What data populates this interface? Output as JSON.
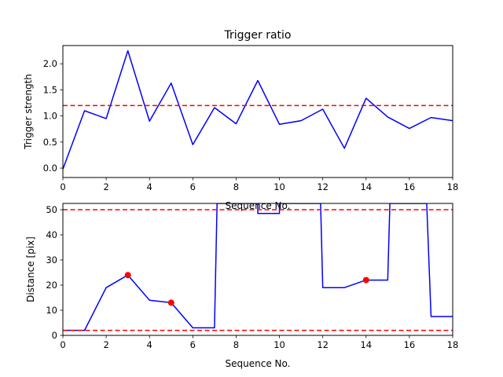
{
  "chart_data": [
    {
      "type": "line",
      "title": "Trigger ratio",
      "xlabel": "Sequence No.",
      "ylabel": "Trigger strength",
      "xlim": [
        0,
        18
      ],
      "ylim": [
        -0.18,
        2.35
      ],
      "xticks": [
        0,
        2,
        4,
        6,
        8,
        10,
        12,
        14,
        16,
        18
      ],
      "yticks": [
        0.0,
        0.5,
        1.0,
        1.5,
        2.0
      ],
      "ytick_labels": [
        "0.0",
        "0.5",
        "1.0",
        "1.5",
        "2.0"
      ],
      "grid": false,
      "series": [
        {
          "color": "#0000ff",
          "x": [
            0,
            1,
            2,
            3,
            4,
            5,
            6,
            7,
            8,
            9,
            10,
            11,
            12,
            13,
            14,
            15,
            16,
            17,
            18
          ],
          "values": [
            -0.02,
            1.1,
            0.95,
            2.25,
            0.9,
            1.63,
            0.45,
            1.16,
            0.85,
            1.68,
            0.84,
            0.91,
            1.13,
            0.38,
            1.34,
            0.98,
            0.76,
            0.97,
            0.91
          ]
        }
      ],
      "hlines": [
        {
          "y": 1.2,
          "color": "#ff0000",
          "style": "dashed"
        }
      ],
      "markers": []
    },
    {
      "type": "line",
      "title": "",
      "xlabel": "Sequence No.",
      "ylabel": "Distance [pix]",
      "xlim": [
        0,
        18
      ],
      "ylim": [
        0,
        52.5
      ],
      "xticks": [
        0,
        2,
        4,
        6,
        8,
        10,
        12,
        14,
        16,
        18
      ],
      "yticks": [
        0,
        10,
        20,
        30,
        40,
        50
      ],
      "ytick_labels": [
        "0",
        "10",
        "20",
        "30",
        "40",
        "50"
      ],
      "grid": false,
      "series": [
        {
          "color": "#0000ff",
          "x": [
            0,
            1,
            2,
            3,
            4,
            5,
            6,
            7,
            7.12,
            7.2,
            9,
            9,
            10,
            10,
            11.88,
            11.9,
            12,
            13,
            14,
            15,
            15.1,
            16.7,
            16.8,
            17,
            18
          ],
          "values": [
            2,
            2,
            19,
            24,
            14,
            13,
            3,
            3,
            52.5,
            52.5,
            52.5,
            48.5,
            48.5,
            52.5,
            52.5,
            52.5,
            19,
            19,
            22,
            22,
            52.5,
            52.5,
            52.5,
            7.5,
            7.5
          ]
        }
      ],
      "hlines": [
        {
          "y": 50,
          "color": "#ff0000",
          "style": "dashed"
        },
        {
          "y": 2,
          "color": "#ff0000",
          "style": "dashed"
        }
      ],
      "markers": [
        {
          "x": 3,
          "y": 24,
          "color": "#ff0000"
        },
        {
          "x": 5,
          "y": 13,
          "color": "#ff0000"
        },
        {
          "x": 14,
          "y": 22,
          "color": "#ff0000"
        }
      ]
    }
  ]
}
